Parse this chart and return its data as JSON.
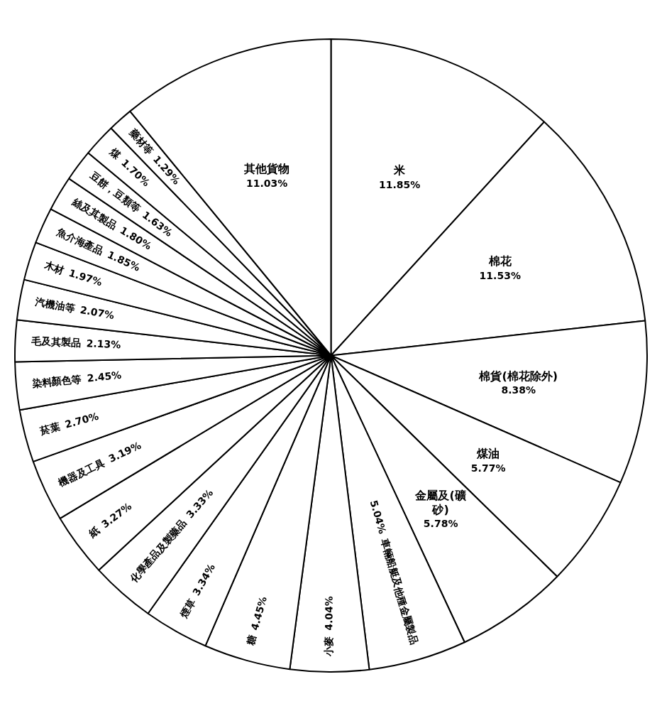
{
  "chart_data": {
    "type": "pie",
    "categories": [
      "米",
      "棉花",
      "棉貨(棉花除外)",
      "煤油",
      "金屬及(礦砂)",
      "車輛船艇及他種金屬製品",
      "小麥",
      "糖",
      "煙草",
      "化學產品及製藥品",
      "紙",
      "機器及工具",
      "菸葉",
      "染料顏色等",
      "毛及其製品",
      "汽機油等",
      "木材",
      "魚介海產品",
      "絲及其製品",
      "豆餅，豆類等",
      "煤",
      "藥材等",
      "其他貨物"
    ],
    "values": [
      11.85,
      11.53,
      8.38,
      5.77,
      5.78,
      5.04,
      4.04,
      4.45,
      3.34,
      3.33,
      3.27,
      3.19,
      2.7,
      2.45,
      2.13,
      2.07,
      1.97,
      1.85,
      1.8,
      1.63,
      1.7,
      1.29,
      11.03
    ],
    "value_labels": [
      "11.85%",
      "11.53%",
      "8.38%",
      "5.77%",
      "5.78%",
      "5.04%",
      "4.04%",
      "4.45%",
      "3.34%",
      "3.33%",
      "3.27%",
      "3.19%",
      "2.70%",
      "2.45%",
      "2.13%",
      "2.07%",
      "1.97%",
      "1.85%",
      "1.80%",
      "1.63%",
      "1.70%",
      "1.29%",
      "11.03%"
    ],
    "colors": [
      "#ffffff",
      "#ffffff",
      "#ffffff",
      "#ffffff",
      "#ffffff",
      "#ffffff",
      "#ffffff",
      "#ffffff",
      "#ffffff",
      "#ffffff",
      "#ffffff",
      "#ffffff",
      "#ffffff",
      "#ffffff",
      "#ffffff",
      "#ffffff",
      "#ffffff",
      "#ffffff",
      "#ffffff",
      "#ffffff",
      "#ffffff",
      "#ffffff",
      "#ffffff"
    ],
    "legend": false
  }
}
